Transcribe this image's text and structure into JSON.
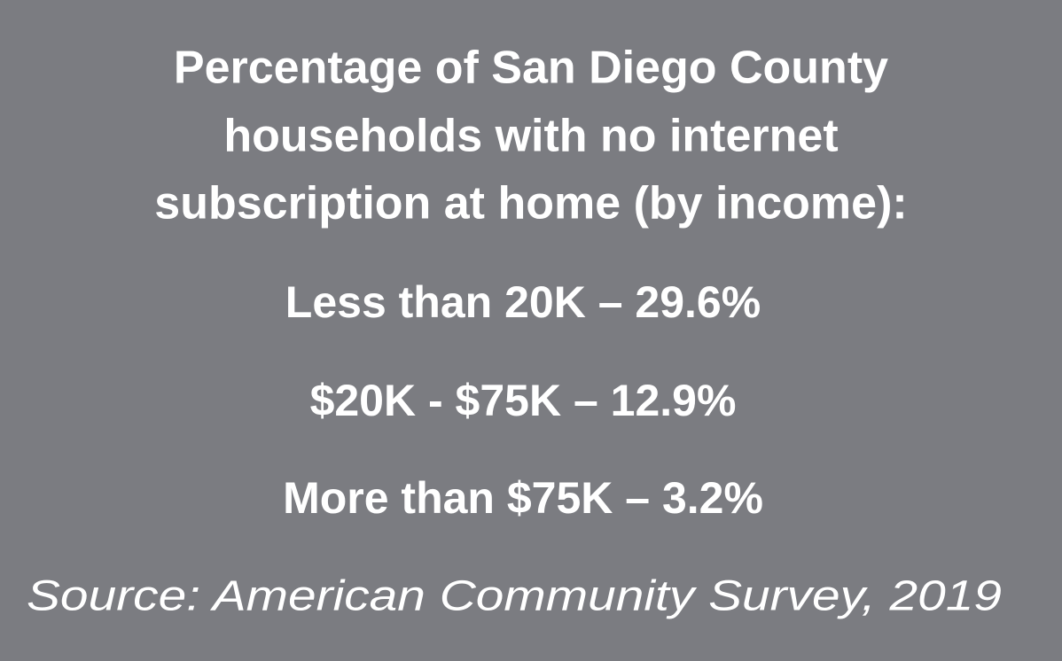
{
  "title": [
    "Percentage of San Diego County",
    "households with no internet",
    "subscription at home (by income):"
  ],
  "items": [
    "Less than 20K – 29.6%",
    "$20K - $75K – 12.9%",
    "More than $75K – 3.2%"
  ],
  "source": "Source: American Community Survey, 2019"
}
